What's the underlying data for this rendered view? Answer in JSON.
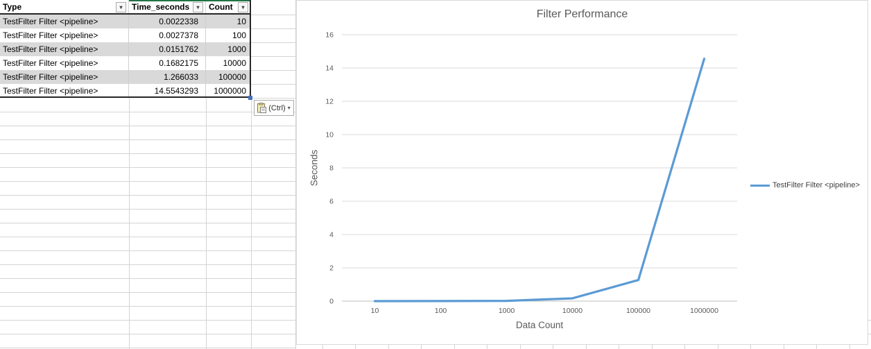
{
  "table": {
    "columns": [
      {
        "label": "Type"
      },
      {
        "label": "Time_seconds"
      },
      {
        "label": "Count"
      }
    ],
    "rows": [
      {
        "type": "TestFilter Filter <pipeline>",
        "time_seconds": "0.0022338",
        "count": "10"
      },
      {
        "type": "TestFilter Filter <pipeline>",
        "time_seconds": "0.0027378",
        "count": "100"
      },
      {
        "type": "TestFilter Filter <pipeline>",
        "time_seconds": "0.0151762",
        "count": "1000"
      },
      {
        "type": "TestFilter Filter <pipeline>",
        "time_seconds": "0.1682175",
        "count": "10000"
      },
      {
        "type": "TestFilter Filter <pipeline>",
        "time_seconds": "1.266033",
        "count": "100000"
      },
      {
        "type": "TestFilter Filter <pipeline>",
        "time_seconds": "14.5543293",
        "count": "1000000"
      }
    ]
  },
  "icons": {
    "filter_dropdown": "▾",
    "paste_dropdown": "▾"
  },
  "paste_button": {
    "label": "(Ctrl)"
  },
  "chart_data": {
    "type": "line",
    "title": "Filter Performance",
    "xlabel": "Data Count",
    "ylabel": "Seconds",
    "categories": [
      "10",
      "100",
      "1000",
      "10000",
      "100000",
      "1000000"
    ],
    "series": [
      {
        "name": "TestFilter Filter <pipeline>",
        "values": [
          0.0022338,
          0.0027378,
          0.0151762,
          0.1682175,
          1.266033,
          14.5543293
        ],
        "color": "#5B9BD5"
      }
    ],
    "ylim": [
      0,
      16
    ],
    "ytick_step": 2,
    "grid": true,
    "legend_position": "right"
  },
  "colors": {
    "line_blue": "#5B9BD5",
    "chart_text": "#595959",
    "gridline": "#D9D9D9",
    "axis_line": "#BFBFBF",
    "band_gray": "#D9D9D9",
    "table_border_dark": "#262626",
    "green_accent": "#217346",
    "fill_handle_blue": "#4472C4",
    "sheet_gridline": "#D4D4D4"
  }
}
